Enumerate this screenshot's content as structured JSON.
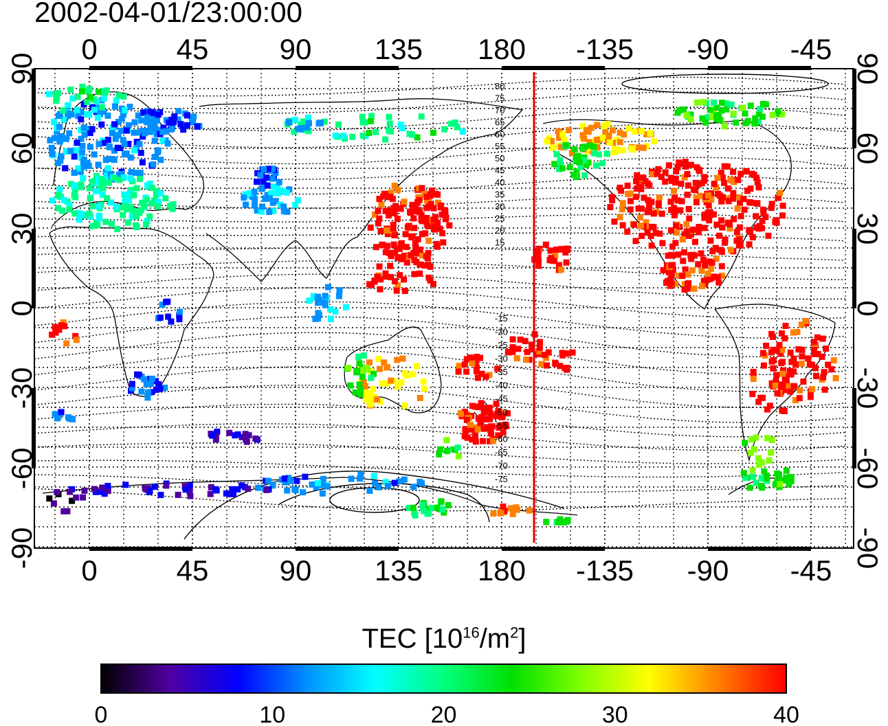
{
  "title": "2002-04-01/23:00:00",
  "map": {
    "lon_ticks_top": [
      "0",
      "45",
      "90",
      "135",
      "180",
      "-135",
      "-90",
      "-45"
    ],
    "lon_ticks_bottom": [
      "0",
      "45",
      "90",
      "135",
      "180",
      "-135",
      "-90",
      "-45"
    ],
    "lat_ticks_left": [
      "90",
      "60",
      "30",
      "0",
      "-30",
      "-60",
      "-90"
    ],
    "lat_ticks_right": [
      "90",
      "60",
      "30",
      "0",
      "-30",
      "-60",
      "-90"
    ],
    "contour_labels_north": [
      "80",
      "75",
      "70",
      "65",
      "60",
      "55",
      "50",
      "45",
      "40",
      "35",
      "30",
      "25",
      "20",
      "15"
    ],
    "contour_labels_south": [
      "-15",
      "-20",
      "-25",
      "-30",
      "-35",
      "-40",
      "-45",
      "-50",
      "-55",
      "-60",
      "-65",
      "-70",
      "-75"
    ],
    "terminator_color": "#e00000"
  },
  "colorbar": {
    "title_main": "TEC  [10",
    "title_exp": "16",
    "title_unit": "/m",
    "title_exp2": "2",
    "title_end": "]",
    "min": 0,
    "max": 40,
    "tick_labels": [
      "0",
      "10",
      "20",
      "30",
      "40"
    ],
    "colors": [
      "#000000",
      "#5000a0",
      "#0000ff",
      "#0090ff",
      "#00ffff",
      "#00ff80",
      "#00e000",
      "#80ff00",
      "#ffff00",
      "#ff8000",
      "#ff0000"
    ]
  }
}
